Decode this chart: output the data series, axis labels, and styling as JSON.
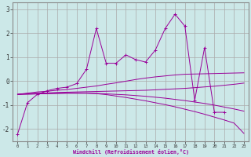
{
  "xlabel": "Windchill (Refroidissement éolien,°C)",
  "bg_color": "#cce8e8",
  "grid_color": "#aaaaaa",
  "line_color": "#990099",
  "x_hours": [
    0,
    1,
    2,
    3,
    4,
    5,
    6,
    7,
    8,
    9,
    10,
    11,
    12,
    13,
    14,
    15,
    16,
    17,
    18,
    19,
    20,
    21,
    22,
    23
  ],
  "main_line": [
    -2.2,
    -0.9,
    -0.55,
    -0.4,
    -0.3,
    -0.25,
    -0.1,
    0.5,
    2.2,
    0.75,
    0.75,
    1.1,
    0.9,
    0.8,
    1.3,
    2.2,
    2.8,
    2.3,
    -0.8,
    1.4,
    -1.3,
    -1.3,
    null,
    null
  ],
  "trend1": [
    -0.55,
    -0.5,
    -0.45,
    -0.42,
    -0.38,
    -0.35,
    -0.3,
    -0.25,
    -0.2,
    -0.13,
    -0.07,
    -0.0,
    0.07,
    0.13,
    0.18,
    0.22,
    0.26,
    0.29,
    0.3,
    0.31,
    0.32,
    0.33,
    0.34,
    0.35
  ],
  "trend2": [
    -0.55,
    -0.52,
    -0.5,
    -0.49,
    -0.47,
    -0.46,
    -0.45,
    -0.44,
    -0.43,
    -0.42,
    -0.41,
    -0.4,
    -0.39,
    -0.38,
    -0.36,
    -0.34,
    -0.32,
    -0.3,
    -0.27,
    -0.24,
    -0.21,
    -0.17,
    -0.13,
    -0.08
  ],
  "trend3": [
    -0.55,
    -0.54,
    -0.53,
    -0.52,
    -0.51,
    -0.5,
    -0.5,
    -0.5,
    -0.52,
    -0.56,
    -0.62,
    -0.68,
    -0.75,
    -0.82,
    -0.9,
    -0.98,
    -1.07,
    -1.17,
    -1.27,
    -1.38,
    -1.5,
    -1.62,
    -1.75,
    -2.18
  ],
  "trend4": [
    -0.55,
    -0.54,
    -0.53,
    -0.52,
    -0.51,
    -0.5,
    -0.5,
    -0.5,
    -0.51,
    -0.53,
    -0.55,
    -0.57,
    -0.6,
    -0.63,
    -0.67,
    -0.71,
    -0.76,
    -0.81,
    -0.87,
    -0.93,
    -1.0,
    -1.08,
    -1.16,
    -1.25
  ],
  "ylim": [
    -2.5,
    3.3
  ],
  "yticks": [
    -2,
    -1,
    0,
    1,
    2,
    3
  ],
  "xtick_fontsize": 4.0,
  "ytick_fontsize": 5.5,
  "xlabel_fontsize": 4.8
}
